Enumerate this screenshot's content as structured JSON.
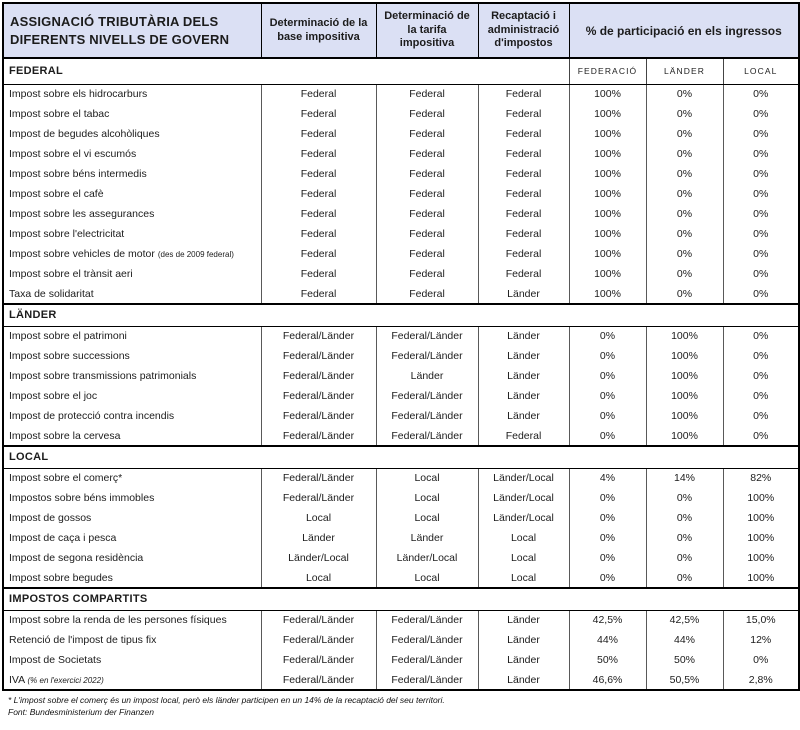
{
  "theme": {
    "header_bg": "#dbe0f4",
    "border_dark": "#000000",
    "border_light": "#595959",
    "text": "#1c1c1c"
  },
  "header": {
    "title": "ASSIGNACIÓ TRIBUTÀRIA DELS DIFERENTS NIVELLS DE GOVERN",
    "columns": [
      "Determinació de la base impositiva",
      "Determinació de la tarifa impositiva",
      "Recaptació i administració d'impostos",
      "% de participació en els ingressos"
    ],
    "pct_subheaders": [
      "FEDERACIÓ",
      "LÄNDER",
      "LOCAL"
    ]
  },
  "sections": [
    {
      "id": "federal",
      "label": "FEDERAL",
      "show_pct_subheaders": true,
      "rows": [
        {
          "name": "Impost sobre els hidrocarburs",
          "base": "Federal",
          "tarifa": "Federal",
          "recaptacio": "Federal",
          "pct": [
            "100%",
            "0%",
            "0%"
          ]
        },
        {
          "name": "Impost sobre el tabac",
          "base": "Federal",
          "tarifa": "Federal",
          "recaptacio": "Federal",
          "pct": [
            "100%",
            "0%",
            "0%"
          ]
        },
        {
          "name": "Impost de begudes alcohòliques",
          "base": "Federal",
          "tarifa": "Federal",
          "recaptacio": "Federal",
          "pct": [
            "100%",
            "0%",
            "0%"
          ]
        },
        {
          "name": "Impost sobre el vi escumós",
          "base": "Federal",
          "tarifa": "Federal",
          "recaptacio": "Federal",
          "pct": [
            "100%",
            "0%",
            "0%"
          ]
        },
        {
          "name": "Impost sobre béns intermedis",
          "base": "Federal",
          "tarifa": "Federal",
          "recaptacio": "Federal",
          "pct": [
            "100%",
            "0%",
            "0%"
          ]
        },
        {
          "name": "Impost sobre el cafè",
          "base": "Federal",
          "tarifa": "Federal",
          "recaptacio": "Federal",
          "pct": [
            "100%",
            "0%",
            "0%"
          ]
        },
        {
          "name": "Impost sobre les assegurances",
          "base": "Federal",
          "tarifa": "Federal",
          "recaptacio": "Federal",
          "pct": [
            "100%",
            "0%",
            "0%"
          ]
        },
        {
          "name": "Impost sobre l'electricitat",
          "base": "Federal",
          "tarifa": "Federal",
          "recaptacio": "Federal",
          "pct": [
            "100%",
            "0%",
            "0%"
          ]
        },
        {
          "name": "Impost sobre vehicles de motor",
          "note": "(des de 2009 federal)",
          "base": "Federal",
          "tarifa": "Federal",
          "recaptacio": "Federal",
          "pct": [
            "100%",
            "0%",
            "0%"
          ]
        },
        {
          "name": "Impost sobre el trànsit aeri",
          "base": "Federal",
          "tarifa": "Federal",
          "recaptacio": "Federal",
          "pct": [
            "100%",
            "0%",
            "0%"
          ]
        },
        {
          "name": "Taxa de solidaritat",
          "base": "Federal",
          "tarifa": "Federal",
          "recaptacio": "Länder",
          "pct": [
            "100%",
            "0%",
            "0%"
          ]
        }
      ]
    },
    {
      "id": "lander",
      "label": "LÄNDER",
      "show_pct_subheaders": false,
      "rows": [
        {
          "name": "Impost sobre el patrimoni",
          "base": "Federal/Länder",
          "tarifa": "Federal/Länder",
          "recaptacio": "Länder",
          "pct": [
            "0%",
            "100%",
            "0%"
          ]
        },
        {
          "name": "Impost sobre successions",
          "base": "Federal/Länder",
          "tarifa": "Federal/Länder",
          "recaptacio": "Länder",
          "pct": [
            "0%",
            "100%",
            "0%"
          ]
        },
        {
          "name": "Impost sobre transmissions patrimonials",
          "base": "Federal/Länder",
          "tarifa": "Länder",
          "recaptacio": "Länder",
          "pct": [
            "0%",
            "100%",
            "0%"
          ]
        },
        {
          "name": "Impost sobre el joc",
          "base": "Federal/Länder",
          "tarifa": "Federal/Länder",
          "recaptacio": "Länder",
          "pct": [
            "0%",
            "100%",
            "0%"
          ]
        },
        {
          "name": "Impost de protecció contra incendis",
          "base": "Federal/Länder",
          "tarifa": "Federal/Länder",
          "recaptacio": "Länder",
          "pct": [
            "0%",
            "100%",
            "0%"
          ]
        },
        {
          "name": "Impost sobre la cervesa",
          "base": "Federal/Länder",
          "tarifa": "Federal/Länder",
          "recaptacio": "Federal",
          "pct": [
            "0%",
            "100%",
            "0%"
          ]
        }
      ]
    },
    {
      "id": "local",
      "label": "LOCAL",
      "show_pct_subheaders": false,
      "rows": [
        {
          "name": "Impost sobre el comerç*",
          "base": "Federal/Länder",
          "tarifa": "Local",
          "recaptacio": "Länder/Local",
          "pct": [
            "4%",
            "14%",
            "82%"
          ]
        },
        {
          "name": "Impostos sobre béns immobles",
          "base": "Federal/Länder",
          "tarifa": "Local",
          "recaptacio": "Länder/Local",
          "pct": [
            "0%",
            "0%",
            "100%"
          ]
        },
        {
          "name": "Impost de gossos",
          "base": "Local",
          "tarifa": "Local",
          "recaptacio": "Länder/Local",
          "pct": [
            "0%",
            "0%",
            "100%"
          ]
        },
        {
          "name": "Impost de caça i pesca",
          "base": "Länder",
          "tarifa": "Länder",
          "recaptacio": "Local",
          "pct": [
            "0%",
            "0%",
            "100%"
          ]
        },
        {
          "name": "Impost de segona residència",
          "base": "Länder/Local",
          "tarifa": "Länder/Local",
          "recaptacio": "Local",
          "pct": [
            "0%",
            "0%",
            "100%"
          ]
        },
        {
          "name": "Impost sobre begudes",
          "base": "Local",
          "tarifa": "Local",
          "recaptacio": "Local",
          "pct": [
            "0%",
            "0%",
            "100%"
          ]
        }
      ]
    },
    {
      "id": "impostos-compartits",
      "label": "IMPOSTOS COMPARTITS",
      "show_pct_subheaders": false,
      "rows": [
        {
          "name": "Impost sobre la renda de les persones físiques",
          "base": "Federal/Länder",
          "tarifa": "Federal/Länder",
          "recaptacio": "Länder",
          "pct": [
            "42,5%",
            "42,5%",
            "15,0%"
          ]
        },
        {
          "name": "Retenció de l'impost de tipus fix",
          "base": "Federal/Länder",
          "tarifa": "Federal/Länder",
          "recaptacio": "Länder",
          "pct": [
            "44%",
            "44%",
            "12%"
          ]
        },
        {
          "name": "Impost de Societats",
          "base": "Federal/Länder",
          "tarifa": "Federal/Länder",
          "recaptacio": "Länder",
          "pct": [
            "50%",
            "50%",
            "0%"
          ]
        },
        {
          "name": "IVA",
          "note": "(% en l'exercici 2022)",
          "note_italic": true,
          "base": "Federal/Länder",
          "tarifa": "Federal/Länder",
          "recaptacio": "Länder",
          "pct": [
            "46,6%",
            "50,5%",
            "2,8%"
          ]
        }
      ]
    }
  ],
  "footnotes": {
    "asterisk": "* L'impost sobre el comerç és un impost local, però els länder participen en un 14% de la recaptació del seu territori.",
    "source": "Font: Bundesministerium  der Finanzen"
  }
}
